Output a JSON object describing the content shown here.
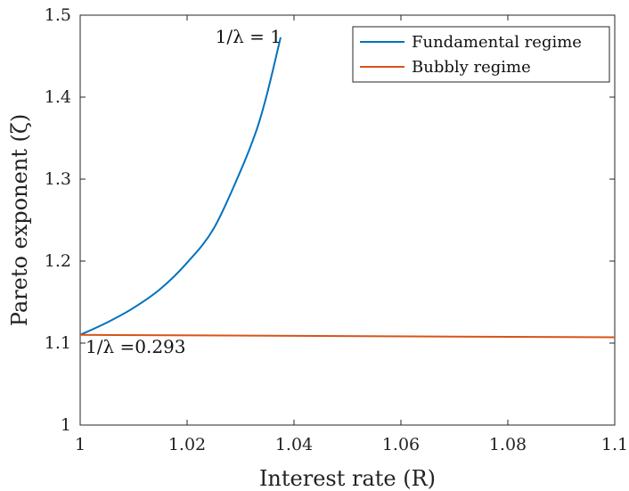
{
  "chart_data": {
    "type": "line",
    "xlabel": "Interest rate (R)",
    "ylabel": "Pareto exponent (ζ)",
    "xlim": [
      1.0,
      1.1
    ],
    "ylim": [
      1.0,
      1.5
    ],
    "xticks": [
      1.0,
      1.02,
      1.04,
      1.06,
      1.08,
      1.1
    ],
    "xtick_labels": [
      "1",
      "1.02",
      "1.04",
      "1.06",
      "1.08",
      "1.1"
    ],
    "yticks": [
      1.0,
      1.1,
      1.2,
      1.3,
      1.4,
      1.5
    ],
    "ytick_labels": [
      "1",
      "1.1",
      "1.2",
      "1.3",
      "1.4",
      "1.5"
    ],
    "grid": false,
    "legend_position": "top-right",
    "series": [
      {
        "name": "Fundamental regime",
        "color": "#0072BD",
        "x": [
          1.0,
          1.005,
          1.01,
          1.015,
          1.02,
          1.025,
          1.03,
          1.033,
          1.035,
          1.0375
        ],
        "y": [
          1.11,
          1.125,
          1.143,
          1.166,
          1.198,
          1.24,
          1.31,
          1.36,
          1.405,
          1.473
        ]
      },
      {
        "name": "Bubbly regime",
        "color": "#D95319",
        "x": [
          1.0,
          1.1
        ],
        "y": [
          1.11,
          1.107
        ]
      }
    ],
    "annotations": [
      {
        "text": "1/λ = 1",
        "x": 1.038,
        "y": 1.473,
        "anchor": "end"
      },
      {
        "text": "1/λ =0.293",
        "x": 1.0,
        "y": 1.11,
        "anchor": "start"
      }
    ]
  }
}
